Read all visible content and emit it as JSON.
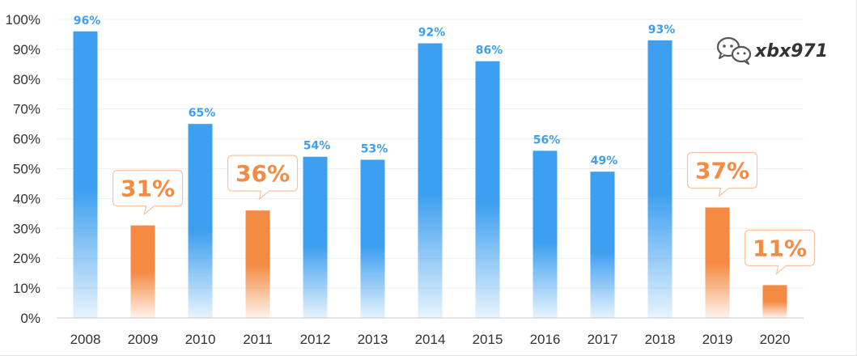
{
  "chart_data": {
    "type": "bar",
    "categories": [
      "2008",
      "2009",
      "2010",
      "2011",
      "2012",
      "2013",
      "2014",
      "2015",
      "2016",
      "2017",
      "2018",
      "2019",
      "2020"
    ],
    "values": [
      96,
      31,
      65,
      36,
      54,
      53,
      92,
      86,
      56,
      49,
      93,
      37,
      11
    ],
    "value_labels": [
      "96%",
      "31%",
      "65%",
      "36%",
      "54%",
      "53%",
      "92%",
      "86%",
      "56%",
      "49%",
      "93%",
      "37%",
      "11%"
    ],
    "highlighted": [
      false,
      true,
      false,
      true,
      false,
      false,
      false,
      false,
      false,
      false,
      false,
      true,
      true
    ],
    "ylim": [
      0,
      100
    ],
    "yticks": [
      0,
      10,
      20,
      30,
      40,
      50,
      60,
      70,
      80,
      90,
      100
    ],
    "ytick_labels": [
      "0%",
      "10%",
      "20%",
      "30%",
      "40%",
      "50%",
      "60%",
      "70%",
      "80%",
      "90%",
      "100%"
    ],
    "title": "",
    "xlabel": "",
    "ylabel": "",
    "grid": true,
    "colors": {
      "normal": "#3d9ff0",
      "highlight": "#f58a42"
    }
  },
  "watermark": {
    "text": "xbx971",
    "icon": "wechat-icon"
  }
}
